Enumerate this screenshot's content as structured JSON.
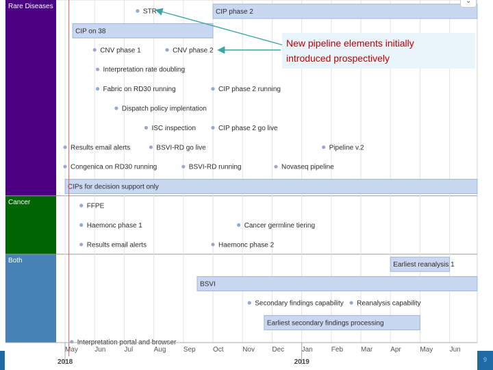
{
  "callout": {
    "text_line1": "New pipeline elements initially",
    "text_line2": "introduced prospectively"
  },
  "corner_button": {
    "icon": "chevron-down-icon",
    "glyph": "⌄"
  },
  "page_number": "9",
  "colors": {
    "rare_diseases": "#4b0082",
    "cancer": "#006400",
    "both": "#4682b4",
    "bar_fill": "#c9d8f0",
    "bar_border": "#9db5dc",
    "dot": "#97a9d3",
    "today_line": "#e06060",
    "arrow": "#3aa6a6",
    "callout_bg": "#e9f4fb",
    "callout_text": "#c00000"
  },
  "chart_data": {
    "type": "timeline",
    "x_axis": {
      "months": [
        "May",
        "Jun",
        "Jul",
        "Aug",
        "Sep",
        "Oct",
        "Nov",
        "Dec",
        "Jan",
        "Feb",
        "Mar",
        "Apr",
        "May",
        "Jun",
        "Jul"
      ],
      "years": [
        {
          "label": "2018",
          "month_index": 0
        },
        {
          "label": "2019",
          "month_index": 8
        }
      ],
      "range": [
        "2018-05",
        "2019-07"
      ]
    },
    "today_marker": "2018-05-05",
    "groups": [
      {
        "name": "Rare Diseases",
        "rows": [
          [
            {
              "kind": "dot",
              "label": "STR",
              "date": "2018-07-15"
            },
            {
              "kind": "bar",
              "label": "CIP phase 2",
              "start": "2018-10-01",
              "end": "2019-07-31"
            }
          ],
          [
            {
              "kind": "bar",
              "label": "CIP on 38",
              "start": "2018-05-09",
              "end": "2018-09-30"
            }
          ],
          [
            {
              "kind": "dot",
              "label": "CNV phase 1",
              "date": "2018-06-01"
            },
            {
              "kind": "dot",
              "label": "CNV phase 2",
              "date": "2018-08-15"
            }
          ],
          [
            {
              "kind": "dot",
              "label": "Interpretation rate doubling",
              "date": "2018-06-04"
            }
          ],
          [
            {
              "kind": "dot",
              "label": "Fabric on RD30 running",
              "date": "2018-06-04"
            },
            {
              "kind": "dot",
              "label": "CIP phase 2 running",
              "date": "2018-10-01"
            }
          ],
          [
            {
              "kind": "dot",
              "label": "Dispatch policy implentation",
              "date": "2018-06-23"
            }
          ],
          [
            {
              "kind": "dot",
              "label": "ISC inspection",
              "date": "2018-07-24"
            },
            {
              "kind": "dot",
              "label": "CIP phase 2 go live",
              "date": "2018-10-01"
            }
          ],
          [
            {
              "kind": "dot",
              "label": "Results email alerts",
              "date": "2018-05-01"
            },
            {
              "kind": "dot",
              "label": "BSVI-RD go live",
              "date": "2018-07-29"
            },
            {
              "kind": "dot",
              "label": "Pipeline v.2",
              "date": "2019-01-24"
            }
          ],
          [
            {
              "kind": "dot",
              "label": "Congenica on RD30 running",
              "date": "2018-05-01"
            },
            {
              "kind": "dot",
              "label": "BSVI-RD running",
              "date": "2018-09-01"
            },
            {
              "kind": "dot",
              "label": "Novaseq pipeline",
              "date": "2018-12-05"
            }
          ],
          [
            {
              "kind": "bar",
              "label": "CIPs for decision support only",
              "start": "2018-05-01",
              "end": "2019-07-31"
            }
          ]
        ]
      },
      {
        "name": "Cancer",
        "rows": [
          [
            {
              "kind": "dot",
              "label": "FFPE",
              "date": "2018-05-18"
            }
          ],
          [
            {
              "kind": "dot",
              "label": "Haemonc phase 1",
              "date": "2018-05-18"
            },
            {
              "kind": "dot",
              "label": "Cancer germline tiering",
              "date": "2018-10-28"
            }
          ],
          [
            {
              "kind": "dot",
              "label": "Results email alerts",
              "date": "2018-05-18"
            },
            {
              "kind": "dot",
              "label": "Haemonc phase 2",
              "date": "2018-10-01"
            }
          ]
        ]
      },
      {
        "name": "Both",
        "rows": [
          [
            {
              "kind": "bar",
              "label": "Earliest reanalysis 1",
              "start": "2019-04-01",
              "end": "2019-05-31"
            }
          ],
          [
            {
              "kind": "bar",
              "label": "BSVI",
              "start": "2018-09-15",
              "end": "2019-07-31"
            }
          ],
          [
            {
              "kind": "dot",
              "label": "Secondary findings capability",
              "date": "2018-11-08"
            },
            {
              "kind": "dot",
              "label": "Reanalysis capability",
              "date": "2019-02-20"
            }
          ],
          [
            {
              "kind": "bar",
              "label": "Earliest secondary findings processing",
              "start": "2018-11-23",
              "end": "2019-04-30"
            }
          ],
          [
            {
              "kind": "dot",
              "label": "Interpretation portal and browser",
              "date": "2018-05-08"
            }
          ]
        ]
      }
    ],
    "annotation": {
      "text": "New pipeline elements initially introduced prospectively",
      "points_to": [
        "STR",
        "CNV phase 2"
      ]
    }
  }
}
